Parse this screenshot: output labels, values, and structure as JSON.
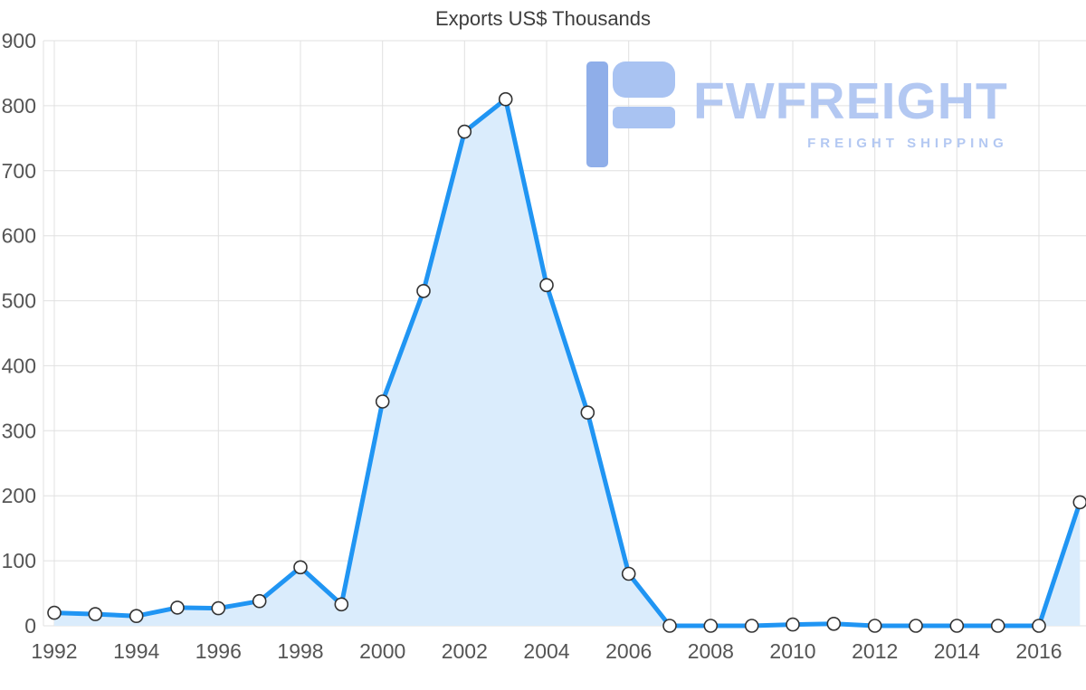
{
  "title": "Exports US$ Thousands",
  "watermark": {
    "brand": "FWFREIGHT",
    "tagline": "FREIGHT SHIPPING"
  },
  "colors": {
    "line": "#2095f3",
    "area": "#daecfc",
    "marker_fill": "#ffffff",
    "marker_stroke": "#333333",
    "grid": "#e0e0e0",
    "axis_text": "#555555",
    "title_text": "#3d3d3d",
    "watermark_light": "#a9c3f2",
    "watermark_dark": "#8faee9",
    "watermark_text": "#b3c8f2"
  },
  "chart_data": {
    "type": "area",
    "title": "Exports US$ Thousands",
    "xlabel": "",
    "ylabel": "",
    "x": [
      1992,
      1993,
      1994,
      1995,
      1996,
      1997,
      1998,
      1999,
      2000,
      2001,
      2002,
      2003,
      2004,
      2005,
      2006,
      2007,
      2008,
      2009,
      2010,
      2011,
      2012,
      2013,
      2014,
      2015,
      2016,
      2017
    ],
    "series": [
      {
        "name": "Exports US$ Thousands",
        "values": [
          20,
          18,
          15,
          28,
          27,
          38,
          90,
          33,
          345,
          515,
          760,
          810,
          524,
          328,
          80,
          0,
          0,
          0,
          2,
          3,
          0,
          0,
          0,
          0,
          0,
          190
        ]
      }
    ],
    "ylim": [
      0,
      900
    ],
    "y_ticks": [
      0,
      100,
      200,
      300,
      400,
      500,
      600,
      700,
      800,
      900
    ],
    "x_ticks": [
      1992,
      1994,
      1996,
      1998,
      2000,
      2002,
      2004,
      2006,
      2008,
      2010,
      2012,
      2014,
      2016
    ],
    "grid": true,
    "legend": "none",
    "markers": true
  }
}
